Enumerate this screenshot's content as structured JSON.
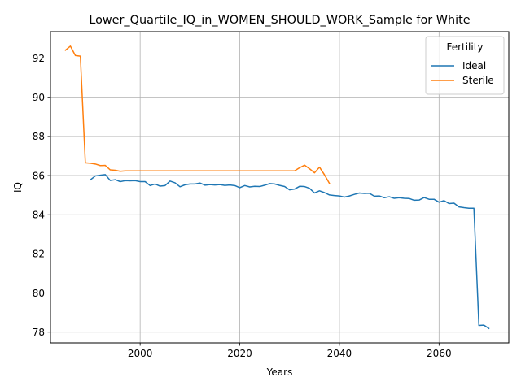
{
  "chart_data": {
    "type": "line",
    "title": "Lower_Quartile_IQ_in_WOMEN_SHOULD_WORK_Sample for White",
    "xlabel": "Years",
    "ylabel": "IQ",
    "xlim": [
      1982,
      2074
    ],
    "ylim": [
      77.45,
      93.35
    ],
    "xticks": [
      2000,
      2020,
      2040,
      2060
    ],
    "yticks": [
      78,
      80,
      82,
      84,
      86,
      88,
      90,
      92
    ],
    "grid": true,
    "legend": {
      "title": "Fertility",
      "position": "top-right"
    },
    "series": [
      {
        "name": "Ideal",
        "color": "#1f77b4",
        "x": [
          1990,
          1991,
          1992,
          1993,
          1994,
          1995,
          1996,
          1997,
          1998,
          1999,
          2000,
          2001,
          2002,
          2003,
          2004,
          2005,
          2006,
          2007,
          2008,
          2009,
          2010,
          2011,
          2012,
          2013,
          2014,
          2015,
          2016,
          2017,
          2018,
          2019,
          2020,
          2021,
          2022,
          2023,
          2024,
          2025,
          2026,
          2027,
          2028,
          2029,
          2030,
          2031,
          2032,
          2033,
          2034,
          2035,
          2036,
          2037,
          2038,
          2039,
          2040,
          2041,
          2042,
          2043,
          2044,
          2045,
          2046,
          2047,
          2048,
          2049,
          2050,
          2051,
          2052,
          2053,
          2054,
          2055,
          2056,
          2057,
          2058,
          2059,
          2060,
          2061,
          2062,
          2063,
          2064,
          2065,
          2066,
          2067,
          2068,
          2069,
          2070
        ],
        "values": [
          85.78,
          85.98,
          86.02,
          86.05,
          85.75,
          85.79,
          85.69,
          85.74,
          85.73,
          85.74,
          85.69,
          85.69,
          85.49,
          85.57,
          85.46,
          85.49,
          85.72,
          85.63,
          85.43,
          85.53,
          85.57,
          85.57,
          85.62,
          85.51,
          85.54,
          85.52,
          85.54,
          85.5,
          85.52,
          85.49,
          85.38,
          85.49,
          85.42,
          85.45,
          85.44,
          85.51,
          85.59,
          85.57,
          85.5,
          85.44,
          85.27,
          85.31,
          85.45,
          85.44,
          85.35,
          85.11,
          85.22,
          85.13,
          85.01,
          84.98,
          84.96,
          84.9,
          84.96,
          85.04,
          85.11,
          85.09,
          85.1,
          84.95,
          84.96,
          84.87,
          84.92,
          84.84,
          84.87,
          84.84,
          84.83,
          84.74,
          84.75,
          84.88,
          84.79,
          84.79,
          84.64,
          84.72,
          84.57,
          84.59,
          84.4,
          84.36,
          84.33,
          84.33,
          78.34,
          78.36,
          78.19
        ]
      },
      {
        "name": "Sterile",
        "color": "#ff7f0e",
        "x": [
          1985,
          1986,
          1987,
          1988,
          1989,
          1990,
          1991,
          1992,
          1993,
          1994,
          1995,
          1996,
          1997,
          1998,
          1999,
          2000,
          2001,
          2002,
          2003,
          2004,
          2005,
          2006,
          2007,
          2008,
          2009,
          2010,
          2011,
          2012,
          2013,
          2014,
          2015,
          2016,
          2017,
          2018,
          2019,
          2020,
          2021,
          2022,
          2023,
          2024,
          2025,
          2026,
          2027,
          2028,
          2029,
          2030,
          2031,
          2032,
          2033,
          2034,
          2035,
          2036,
          2037,
          2038
        ],
        "values": [
          92.4,
          92.61,
          92.13,
          92.1,
          86.65,
          86.63,
          86.59,
          86.51,
          86.52,
          86.29,
          86.27,
          86.22,
          86.24,
          86.24,
          86.24,
          86.24,
          86.24,
          86.24,
          86.24,
          86.24,
          86.24,
          86.24,
          86.24,
          86.24,
          86.24,
          86.24,
          86.24,
          86.24,
          86.24,
          86.24,
          86.24,
          86.24,
          86.24,
          86.24,
          86.24,
          86.24,
          86.24,
          86.24,
          86.24,
          86.24,
          86.24,
          86.24,
          86.24,
          86.24,
          86.24,
          86.24,
          86.24,
          86.4,
          86.53,
          86.35,
          86.14,
          86.43,
          86.04,
          85.6
        ]
      }
    ]
  }
}
